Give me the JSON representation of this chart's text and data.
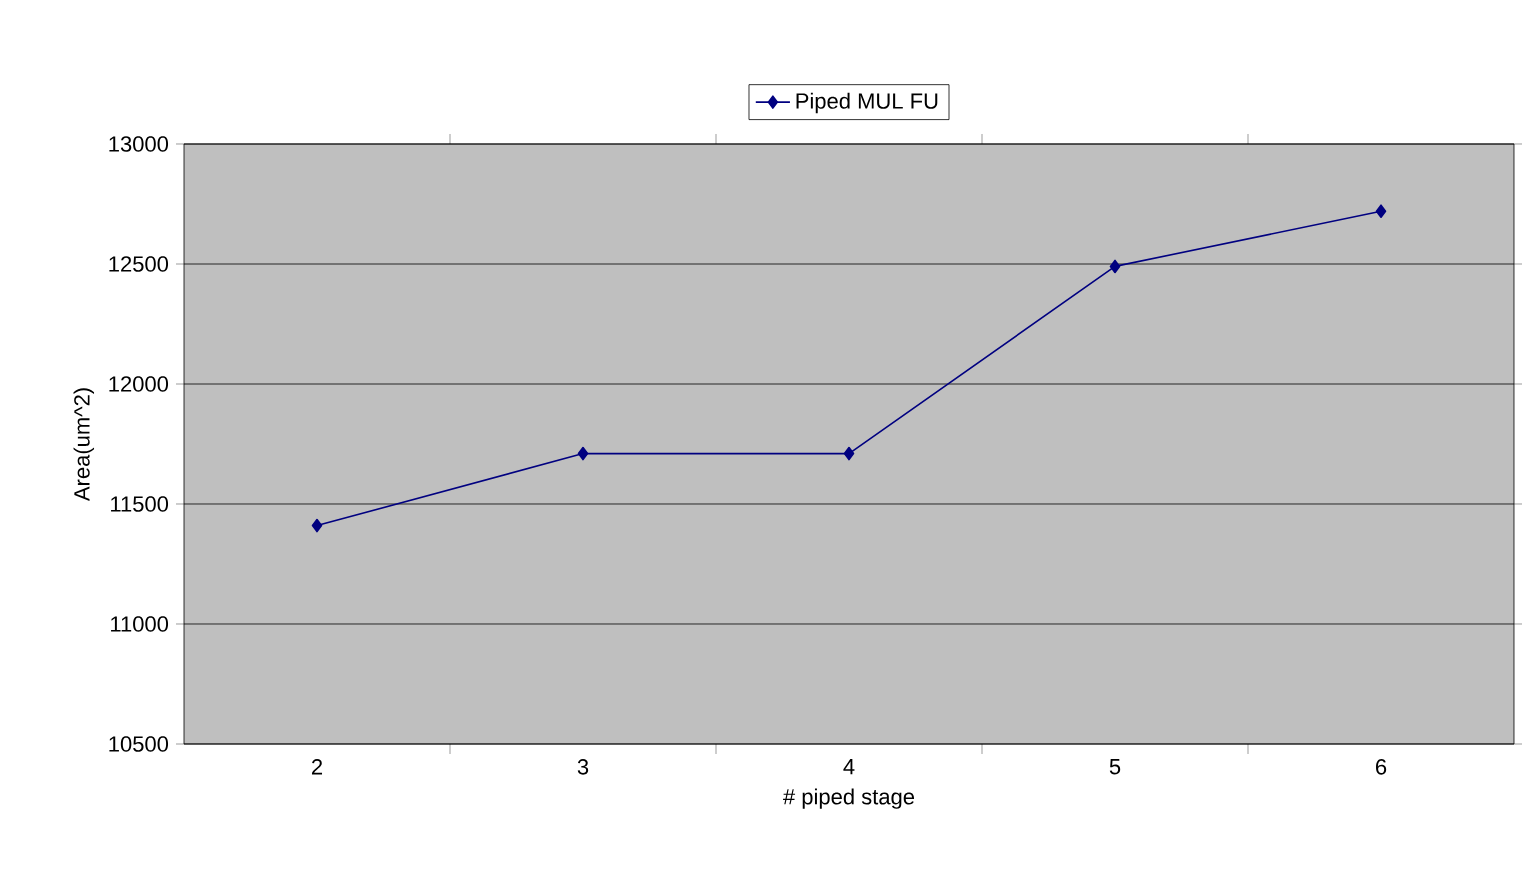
{
  "chart_data": {
    "type": "line",
    "xlabel": "# piped stage",
    "ylabel": "Area(um^2)",
    "categories": [
      "2",
      "3",
      "4",
      "5",
      "6"
    ],
    "series": [
      {
        "name": "Piped MUL FU",
        "color": "#000080",
        "values": [
          11410,
          11710,
          11710,
          12490,
          12720
        ]
      }
    ],
    "ylim": [
      10500,
      13000
    ],
    "yticks": [
      10500,
      11000,
      11500,
      12000,
      12500,
      13000
    ],
    "grid": "y",
    "legend": "top",
    "marker": "diamond",
    "line_style": "solid"
  }
}
